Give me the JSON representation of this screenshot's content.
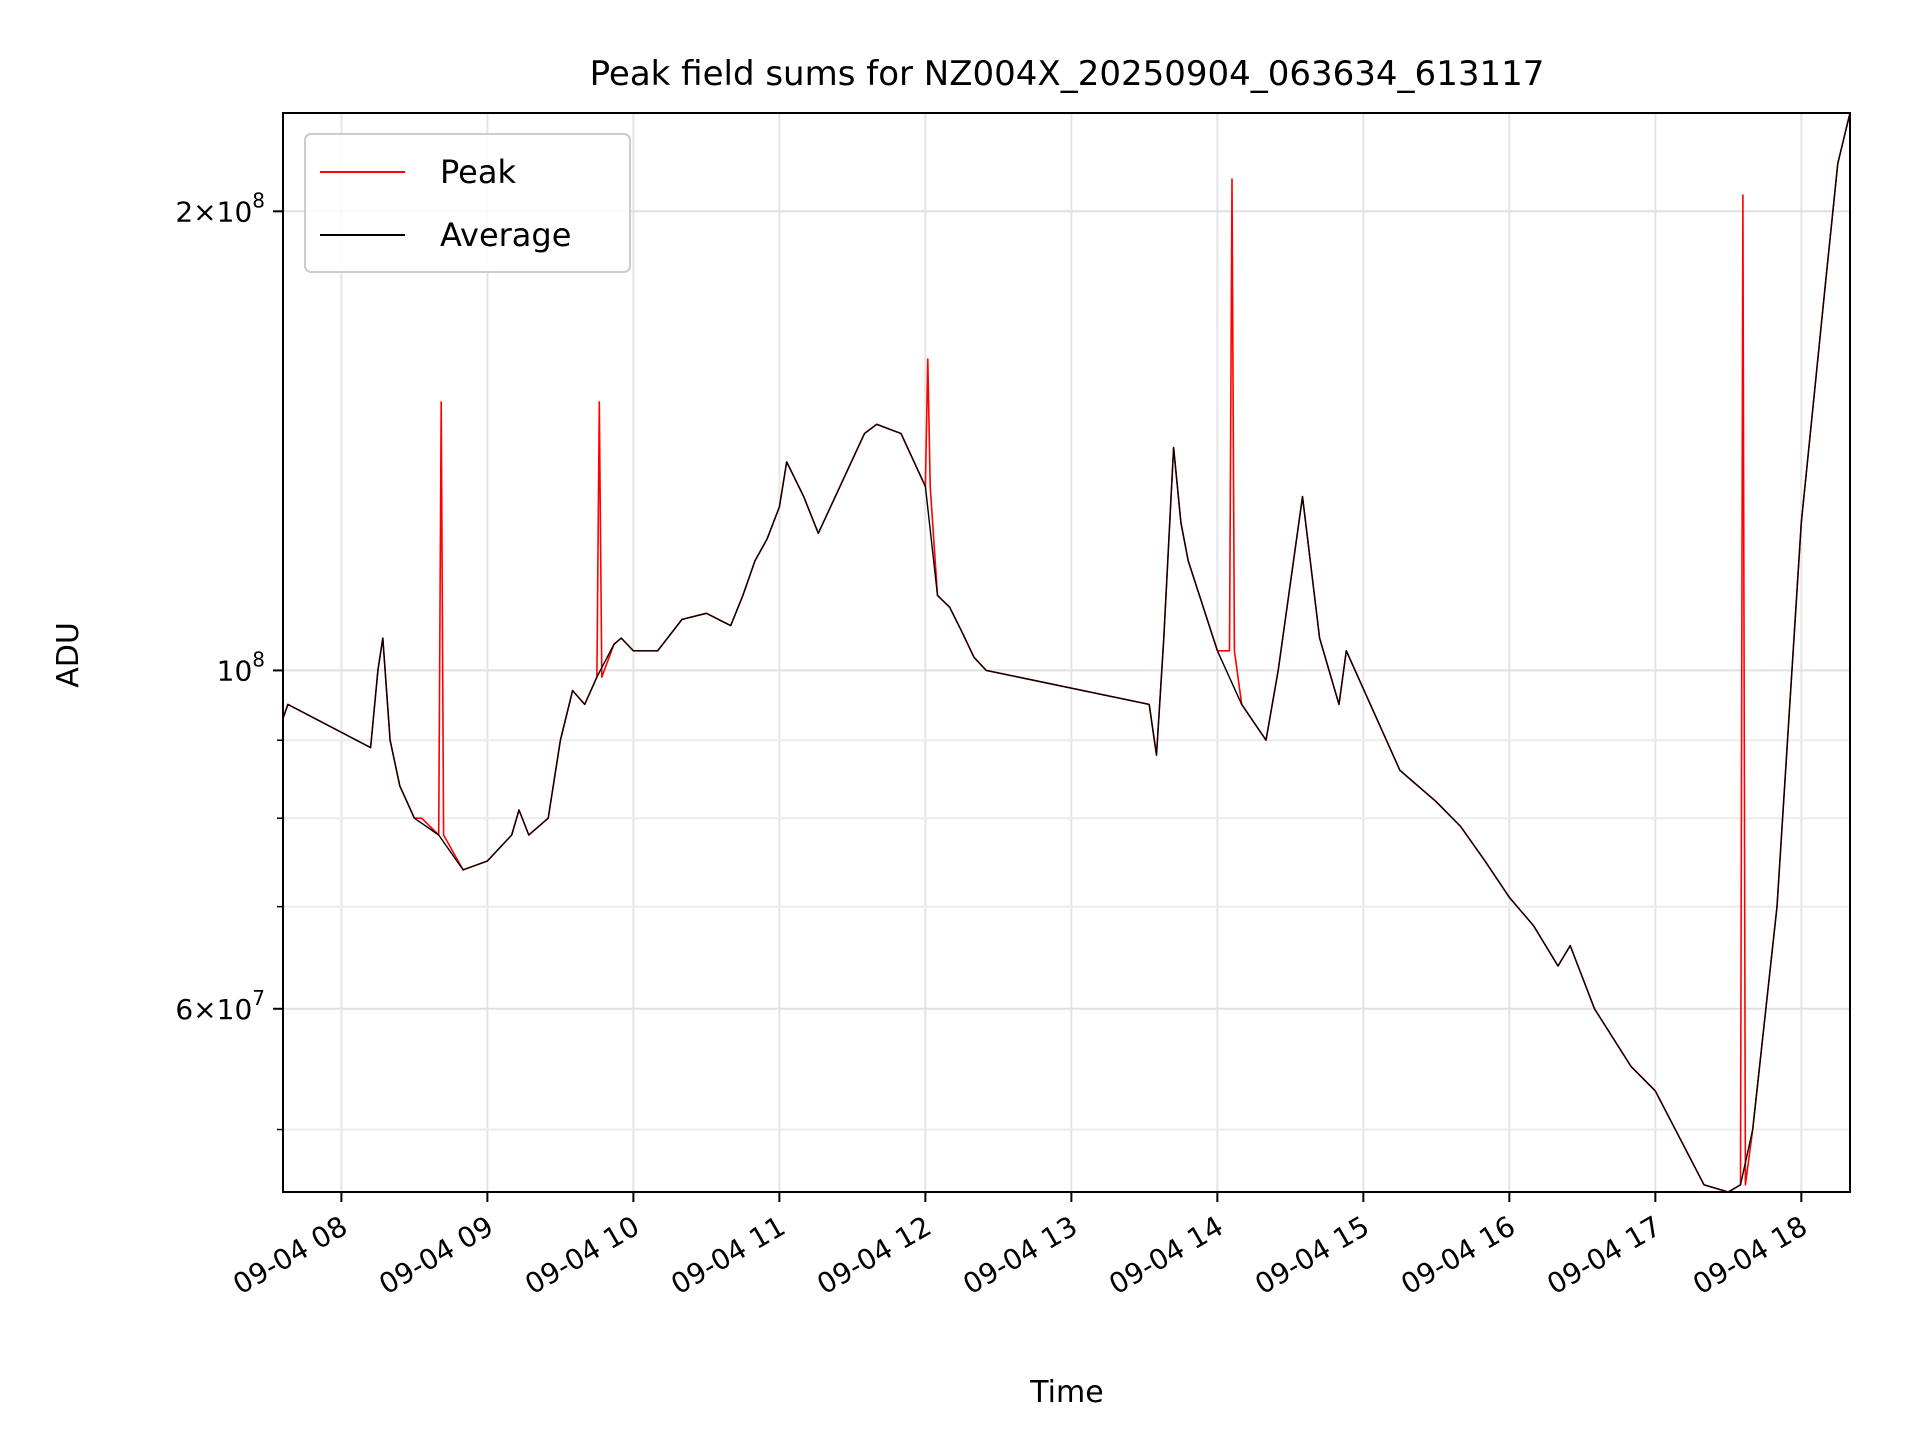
{
  "chart_data": {
    "type": "line",
    "title": "Peak field sums for NZ004X_20250904_063634_613117",
    "xlabel": "Time",
    "ylabel": "ADU",
    "x_ticks": [
      "09-04 08",
      "09-04 09",
      "09-04 10",
      "09-04 11",
      "09-04 12",
      "09-04 13",
      "09-04 14",
      "09-04 15",
      "09-04 16",
      "09-04 17",
      "09-04 18"
    ],
    "y_ticks": [
      {
        "value": 200000000,
        "mantissa": "2",
        "exp": "8"
      },
      {
        "value": 100000000,
        "mantissa": "",
        "exp": "8"
      },
      {
        "value": 60000000,
        "mantissa": "6",
        "exp": "7"
      }
    ],
    "y_minor_ticks": [
      40000000,
      50000000,
      70000000,
      80000000,
      90000000
    ],
    "xlim": [
      "2025-09-04 07:36",
      "2025-09-04 18:20"
    ],
    "ylim": [
      45500000,
      232000000
    ],
    "y_scale": "log",
    "grid": true,
    "legend_position": "top-left",
    "series": [
      {
        "name": "Average",
        "color": "#000000",
        "x": [
          "2025-09-04 07:36",
          "2025-09-04 07:38",
          "2025-09-04 08:12",
          "2025-09-04 08:15",
          "2025-09-04 08:17",
          "2025-09-04 08:20",
          "2025-09-04 08:24",
          "2025-09-04 08:30",
          "2025-09-04 08:40",
          "2025-09-04 08:50",
          "2025-09-04 09:00",
          "2025-09-04 09:10",
          "2025-09-04 09:13",
          "2025-09-04 09:17",
          "2025-09-04 09:25",
          "2025-09-04 09:30",
          "2025-09-04 09:35",
          "2025-09-04 09:40",
          "2025-09-04 09:45",
          "2025-09-04 09:52",
          "2025-09-04 09:55",
          "2025-09-04 10:00",
          "2025-09-04 10:10",
          "2025-09-04 10:20",
          "2025-09-04 10:30",
          "2025-09-04 10:40",
          "2025-09-04 10:45",
          "2025-09-04 10:50",
          "2025-09-04 10:55",
          "2025-09-04 11:00",
          "2025-09-04 11:03",
          "2025-09-04 11:10",
          "2025-09-04 11:16",
          "2025-09-04 11:35",
          "2025-09-04 11:40",
          "2025-09-04 11:50",
          "2025-09-04 12:00",
          "2025-09-04 12:05",
          "2025-09-04 12:10",
          "2025-09-04 12:15",
          "2025-09-04 12:20",
          "2025-09-04 12:25",
          "2025-09-04 13:32",
          "2025-09-04 13:35",
          "2025-09-04 13:38",
          "2025-09-04 13:42",
          "2025-09-04 13:45",
          "2025-09-04 13:48",
          "2025-09-04 14:00",
          "2025-09-04 14:10",
          "2025-09-04 14:20",
          "2025-09-04 14:25",
          "2025-09-04 14:35",
          "2025-09-04 14:42",
          "2025-09-04 14:50",
          "2025-09-04 14:53",
          "2025-09-04 15:15",
          "2025-09-04 15:30",
          "2025-09-04 15:40",
          "2025-09-04 15:50",
          "2025-09-04 16:00",
          "2025-09-04 16:10",
          "2025-09-04 16:20",
          "2025-09-04 16:25",
          "2025-09-04 16:35",
          "2025-09-04 16:50",
          "2025-09-04 17:00",
          "2025-09-04 17:20",
          "2025-09-04 17:30",
          "2025-09-04 17:35",
          "2025-09-04 17:40",
          "2025-09-04 17:50",
          "2025-09-04 18:00",
          "2025-09-04 18:05",
          "2025-09-04 18:10",
          "2025-09-04 18:15",
          "2025-09-04 18:20"
        ],
        "y": [
          93000000,
          95000000,
          89000000,
          100000000,
          105000000,
          90000000,
          84000000,
          80000000,
          78000000,
          74000000,
          75000000,
          78000000,
          81000000,
          78000000,
          80000000,
          90000000,
          97000000,
          95000000,
          99000000,
          104000000,
          105000000,
          103000000,
          103000000,
          108000000,
          109000000,
          107000000,
          112000000,
          118000000,
          122000000,
          128000000,
          137000000,
          130000000,
          123000000,
          143000000,
          145000000,
          143000000,
          132000000,
          112000000,
          110000000,
          106000000,
          102000000,
          100000000,
          95000000,
          88000000,
          105000000,
          140000000,
          125000000,
          118000000,
          103000000,
          95000000,
          90000000,
          100000000,
          130000000,
          105000000,
          95000000,
          103000000,
          86000000,
          82000000,
          79000000,
          75000000,
          71000000,
          68000000,
          64000000,
          66000000,
          60000000,
          55000000,
          53000000,
          46000000,
          45500000,
          46000000,
          50000000,
          70000000,
          125000000,
          150000000,
          180000000,
          215000000,
          232000000
        ]
      },
      {
        "name": "Peak",
        "color": "#ff0000",
        "x": [
          "2025-09-04 07:36",
          "2025-09-04 07:38",
          "2025-09-04 08:12",
          "2025-09-04 08:15",
          "2025-09-04 08:17",
          "2025-09-04 08:20",
          "2025-09-04 08:24",
          "2025-09-04 08:30",
          "2025-09-04 08:32",
          "2025-09-04 08:33",
          "2025-09-04 08:40",
          "2025-09-04 08:41",
          "2025-09-04 08:42",
          "2025-09-04 08:50",
          "2025-09-04 09:00",
          "2025-09-04 09:10",
          "2025-09-04 09:13",
          "2025-09-04 09:17",
          "2025-09-04 09:25",
          "2025-09-04 09:30",
          "2025-09-04 09:35",
          "2025-09-04 09:40",
          "2025-09-04 09:45",
          "2025-09-04 09:46",
          "2025-09-04 09:47",
          "2025-09-04 09:52",
          "2025-09-04 09:55",
          "2025-09-04 10:00",
          "2025-09-04 10:10",
          "2025-09-04 10:20",
          "2025-09-04 10:30",
          "2025-09-04 10:40",
          "2025-09-04 10:45",
          "2025-09-04 10:50",
          "2025-09-04 10:55",
          "2025-09-04 11:00",
          "2025-09-04 11:03",
          "2025-09-04 11:10",
          "2025-09-04 11:16",
          "2025-09-04 11:35",
          "2025-09-04 11:40",
          "2025-09-04 11:50",
          "2025-09-04 12:00",
          "2025-09-04 12:01",
          "2025-09-04 12:02",
          "2025-09-04 12:05",
          "2025-09-04 12:10",
          "2025-09-04 12:15",
          "2025-09-04 12:20",
          "2025-09-04 12:25",
          "2025-09-04 13:32",
          "2025-09-04 13:35",
          "2025-09-04 13:38",
          "2025-09-04 13:42",
          "2025-09-04 13:45",
          "2025-09-04 13:48",
          "2025-09-04 14:00",
          "2025-09-04 14:05",
          "2025-09-04 14:06",
          "2025-09-04 14:07",
          "2025-09-04 14:10",
          "2025-09-04 14:20",
          "2025-09-04 14:25",
          "2025-09-04 14:35",
          "2025-09-04 14:42",
          "2025-09-04 14:50",
          "2025-09-04 14:53",
          "2025-09-04 15:15",
          "2025-09-04 15:30",
          "2025-09-04 15:40",
          "2025-09-04 15:50",
          "2025-09-04 16:00",
          "2025-09-04 16:10",
          "2025-09-04 16:20",
          "2025-09-04 16:25",
          "2025-09-04 16:35",
          "2025-09-04 16:50",
          "2025-09-04 17:00",
          "2025-09-04 17:20",
          "2025-09-04 17:30",
          "2025-09-04 17:35",
          "2025-09-04 17:36",
          "2025-09-04 17:37",
          "2025-09-04 17:40",
          "2025-09-04 17:50",
          "2025-09-04 18:00",
          "2025-09-04 18:05",
          "2025-09-04 18:10",
          "2025-09-04 18:15",
          "2025-09-04 18:20"
        ],
        "y": [
          93000000,
          95000000,
          89000000,
          100000000,
          105000000,
          90000000,
          84000000,
          80000000,
          80000000,
          80000000,
          78000000,
          150000000,
          78000000,
          74000000,
          75000000,
          78000000,
          81000000,
          78000000,
          80000000,
          90000000,
          97000000,
          95000000,
          99000000,
          150000000,
          99000000,
          104000000,
          105000000,
          103000000,
          103000000,
          108000000,
          109000000,
          107000000,
          112000000,
          118000000,
          122000000,
          128000000,
          137000000,
          130000000,
          123000000,
          143000000,
          145000000,
          143000000,
          132000000,
          160000000,
          132000000,
          112000000,
          110000000,
          106000000,
          102000000,
          100000000,
          95000000,
          88000000,
          105000000,
          140000000,
          125000000,
          118000000,
          103000000,
          103000000,
          210000000,
          103000000,
          95000000,
          90000000,
          100000000,
          130000000,
          105000000,
          95000000,
          103000000,
          86000000,
          82000000,
          79000000,
          75000000,
          71000000,
          68000000,
          64000000,
          66000000,
          60000000,
          55000000,
          53000000,
          46000000,
          45500000,
          46000000,
          205000000,
          46000000,
          50000000,
          70000000,
          125000000,
          150000000,
          180000000,
          215000000,
          232000000
        ]
      }
    ]
  }
}
